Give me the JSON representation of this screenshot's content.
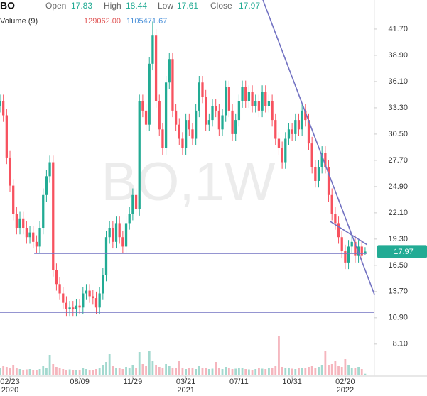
{
  "chart_data": {
    "type": "candlestick",
    "symbol": "BO",
    "open_label": "Open",
    "high_label": "High",
    "low_label": "Low",
    "close_label": "Close",
    "volume_title": "Volume (9)",
    "volume_last_label": "129062.00",
    "volume_ma": 1105471.67,
    "watermark": "BO,1W",
    "up_color": "#22ab94",
    "down_color": "#f7525f",
    "volume_up_color": "#a3d9cf",
    "volume_down_color": "#f5b5bd",
    "volume_ma_color": "#4a90d9",
    "trend_color": "#7272c2",
    "grid": false,
    "xlim": [
      0,
      112.8
    ],
    "ylim": [
      4.68,
      44.8
    ],
    "vlim": [
      0,
      6000000
    ],
    "yticks": [
      {
        "value": 41.7,
        "label": "41.70"
      },
      {
        "value": 38.9,
        "label": "38.90"
      },
      {
        "value": 36.1,
        "label": "36.10"
      },
      {
        "value": 33.3,
        "label": "33.30"
      },
      {
        "value": 30.5,
        "label": "30.50"
      },
      {
        "value": 27.7,
        "label": "27.70"
      },
      {
        "value": 24.9,
        "label": "24.90"
      },
      {
        "value": 22.1,
        "label": "22.10"
      },
      {
        "value": 19.3,
        "label": "19.30"
      },
      {
        "value": 16.5,
        "label": "16.50"
      },
      {
        "value": 13.7,
        "label": "13.70"
      },
      {
        "value": 10.9,
        "label": "10.90"
      },
      {
        "value": 8.1,
        "label": "8.10"
      }
    ],
    "xticks": [
      {
        "value": 3,
        "label": "02/23"
      },
      {
        "value": 24,
        "label": "08/09"
      },
      {
        "value": 40,
        "label": "11/29"
      },
      {
        "value": 56,
        "label": "03/21"
      },
      {
        "value": 72,
        "label": "07/11"
      },
      {
        "value": 88,
        "label": "10/31"
      },
      {
        "value": 104,
        "label": "02/20"
      }
    ],
    "xtick_sublabels": [
      "2020",
      null,
      null,
      "2021",
      null,
      null,
      "2022"
    ],
    "open": [
      33.5,
      34,
      32.5,
      28,
      25,
      22,
      20.5,
      21.5,
      20.5,
      19.5,
      20,
      19,
      18.5,
      20.5,
      24,
      26,
      27.5,
      16,
      14.5,
      13.5,
      12.5,
      11.8,
      12,
      11.8,
      12.2,
      12,
      13.5,
      13.8,
      13.2,
      13,
      12,
      13.5,
      15.5,
      19.5,
      20.5,
      19,
      21,
      19.5,
      18.5,
      21,
      22,
      24,
      22.5,
      34,
      33,
      31.5,
      38,
      41,
      34,
      31,
      29,
      36,
      38.5,
      33,
      31.5,
      30,
      29,
      32,
      31,
      30,
      33,
      36,
      34.5,
      31.5,
      32,
      33.5,
      33,
      31,
      32.5,
      35.5,
      33,
      30.5,
      32,
      34,
      35.5,
      34,
      35,
      33.5,
      34,
      33,
      35,
      33.5,
      34,
      32,
      30,
      29,
      27.5,
      30,
      31,
      30.5,
      32,
      31,
      33,
      32,
      29.5,
      27,
      25.5,
      27,
      28.5,
      27,
      24,
      22,
      21,
      19.5,
      18,
      16.8,
      18.5,
      19,
      17.5,
      18.5,
      17.83
    ],
    "high": [
      34.7,
      34.7,
      33.2,
      28.7,
      25.7,
      22.7,
      22.2,
      22.2,
      21.2,
      20.7,
      20.7,
      19.7,
      21.2,
      24.7,
      26.7,
      28.2,
      28.2,
      16.7,
      15.2,
      14.2,
      13.2,
      12.7,
      12.7,
      12.9,
      12.9,
      14.2,
      14.5,
      14.5,
      13.9,
      13.7,
      14.2,
      16.2,
      20.2,
      21.2,
      21.2,
      21.7,
      21.7,
      20.2,
      21.7,
      22.7,
      24.7,
      24.7,
      34.7,
      34.7,
      33.7,
      38.7,
      42.5,
      41.7,
      34.7,
      31.7,
      36.7,
      39.2,
      39.2,
      33.7,
      32.2,
      30.7,
      32.7,
      32.7,
      31.7,
      33.7,
      36.7,
      36.7,
      35.2,
      32.7,
      34.2,
      34.2,
      33.7,
      33.2,
      36.2,
      36.2,
      33.7,
      32.7,
      34.7,
      36.2,
      36.2,
      35.7,
      35.7,
      34.7,
      34.7,
      35.7,
      35.7,
      34.7,
      34.7,
      32.7,
      30.7,
      29.7,
      30.7,
      31.7,
      31.7,
      32.7,
      32.7,
      33.7,
      33.7,
      32.7,
      30.2,
      27.7,
      27.7,
      29.2,
      29.2,
      27.7,
      24.7,
      22.7,
      21.7,
      20.2,
      18.7,
      19.2,
      19.7,
      19.7,
      19.2,
      19.2,
      18.44
    ],
    "low": [
      32.8,
      31.8,
      27.3,
      24.3,
      21.3,
      19.8,
      19.8,
      19.8,
      18.8,
      18.8,
      18.3,
      17.8,
      17.8,
      19.8,
      23.3,
      25.3,
      15.3,
      13.8,
      12.8,
      11.8,
      11.1,
      11.1,
      11.1,
      11.1,
      11.3,
      11.3,
      12.8,
      12.5,
      12.3,
      11.3,
      11.3,
      12.8,
      14.8,
      18.8,
      18.3,
      18.3,
      18.8,
      17.8,
      17.8,
      20.3,
      21.3,
      21.8,
      21.8,
      32.3,
      30.8,
      30.8,
      37.3,
      33.3,
      30.3,
      28.3,
      28.3,
      35.3,
      32.3,
      30.8,
      29.3,
      28.3,
      28.3,
      30.3,
      29.3,
      29.3,
      32.3,
      33.8,
      30.8,
      30.8,
      31.3,
      32.3,
      30.3,
      30.3,
      31.8,
      32.3,
      29.8,
      29.8,
      31.3,
      33.3,
      33.3,
      33.3,
      32.8,
      32.8,
      32.3,
      32.3,
      32.8,
      32.8,
      31.3,
      29.3,
      28.3,
      26.8,
      26.8,
      29.3,
      29.8,
      29.8,
      30.3,
      30.3,
      31.3,
      28.8,
      26.3,
      24.8,
      24.8,
      26.3,
      26.3,
      23.3,
      21.3,
      20.3,
      18.8,
      17.3,
      16.1,
      16.1,
      17.8,
      16.8,
      16.8,
      16.8,
      17.61
    ],
    "close": [
      34,
      32.5,
      28,
      25,
      22,
      20.5,
      21.5,
      20.5,
      19.5,
      20,
      19,
      18.5,
      20.5,
      24,
      26,
      27.5,
      16,
      14.5,
      13.5,
      12.5,
      11.8,
      12,
      11.8,
      12.2,
      12,
      13.5,
      13.8,
      13.2,
      13,
      12,
      13.5,
      15.5,
      19.5,
      20.5,
      19,
      21,
      19.5,
      18.5,
      21,
      22,
      24,
      22.5,
      34,
      33,
      31.5,
      38,
      41,
      34,
      31,
      29,
      36,
      38.5,
      33,
      31.5,
      30,
      29,
      32,
      31,
      30,
      33,
      36,
      34.5,
      31.5,
      32,
      33.5,
      33,
      31,
      32.5,
      35.5,
      33,
      30.5,
      32,
      34,
      35.5,
      34,
      35,
      33.5,
      34,
      33,
      35,
      33.5,
      34,
      32,
      30,
      29,
      27.5,
      30,
      31,
      30.5,
      32,
      31,
      33,
      32,
      29.5,
      27,
      25.5,
      27,
      28.5,
      27,
      24,
      22,
      21,
      19.5,
      18,
      16.8,
      18.5,
      19,
      17.5,
      18.5,
      17.5,
      17.97
    ],
    "volume": [
      900000,
      1200000,
      1100000,
      1000000,
      1300000,
      900000,
      800000,
      700000,
      750000,
      800000,
      700000,
      650000,
      800000,
      1200000,
      1000000,
      2800000,
      1500000,
      1100000,
      900000,
      800000,
      700000,
      750000,
      600000,
      650000,
      700000,
      900000,
      800000,
      600000,
      700000,
      800000,
      900000,
      1300000,
      1800000,
      2900000,
      1200000,
      1000000,
      900000,
      800000,
      1100000,
      1000000,
      1300000,
      900000,
      3200000,
      1500000,
      1200000,
      3300000,
      2000000,
      1400000,
      1100000,
      1000000,
      1500000,
      1200000,
      1000000,
      900000,
      2000000,
      900000,
      800000,
      1000000,
      900000,
      800000,
      1200000,
      1000000,
      900000,
      800000,
      850000,
      1800000,
      900000,
      800000,
      1100000,
      900000,
      800000,
      850000,
      900000,
      1000000,
      800000,
      750000,
      700000,
      800000,
      900000,
      850000,
      800000,
      900000,
      1000000,
      1200000,
      5500000,
      1100000,
      1000000,
      900000,
      850000,
      800000,
      900000,
      1000000,
      950000,
      1100000,
      1200000,
      1000000,
      1100000,
      1300000,
      3300000,
      1400000,
      1500000,
      1900000,
      1200000,
      1100000,
      2200000,
      1300000,
      1000000,
      900000,
      1100000,
      800000,
      129062
    ],
    "trend_lines": [
      {
        "x": [
          79.2,
          112.8
        ],
        "y": [
          44.8,
          13.39
        ]
      },
      {
        "x": [
          99.5,
          110.6
        ],
        "y": [
          21.18,
          18.7
        ]
      },
      {
        "x": [
          10.3,
          110.6
        ],
        "y": [
          17.78,
          17.78
        ]
      },
      {
        "x": [
          0,
          112.8
        ],
        "y": [
          11.5,
          11.5
        ]
      }
    ]
  }
}
